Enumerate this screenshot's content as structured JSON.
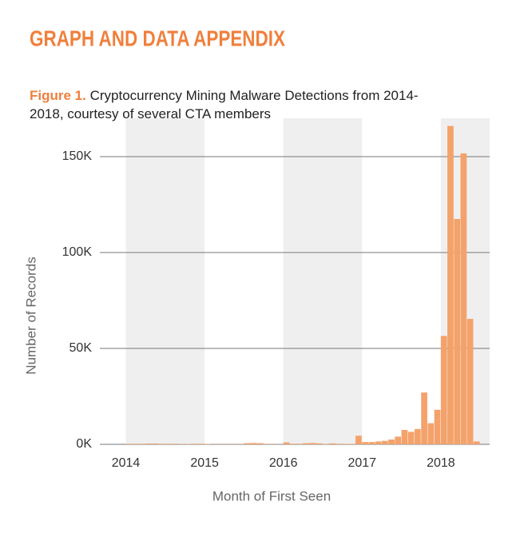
{
  "header": {
    "title": "GRAPH AND DATA APPENDIX"
  },
  "chart_data": {
    "type": "bar",
    "caption_label": "Figure 1.",
    "title": "Cryptocurrency Mining Malware Detections from 2014-2018, courtesy of several CTA members",
    "x_label": "Month of First Seen",
    "y_label": "Number of Records",
    "x": [
      2014.0,
      2014.0833,
      2014.1667,
      2014.25,
      2014.3333,
      2014.4167,
      2014.5,
      2014.5833,
      2014.6667,
      2014.75,
      2014.8333,
      2014.9167,
      2015.0,
      2015.0833,
      2015.1667,
      2015.25,
      2015.3333,
      2015.4167,
      2015.5,
      2015.5833,
      2015.6667,
      2015.75,
      2015.8333,
      2015.9167,
      2016.0,
      2016.0833,
      2016.1667,
      2016.25,
      2016.3333,
      2016.4167,
      2016.5,
      2016.5833,
      2016.6667,
      2016.75,
      2016.8333,
      2016.9167,
      2017.0,
      2017.0833,
      2017.1667,
      2017.25,
      2017.3333,
      2017.4167,
      2017.5,
      2017.5833,
      2017.6667,
      2017.75,
      2017.8333,
      2017.9167,
      2018.0,
      2018.0833,
      2018.1667,
      2018.25,
      2018.3333,
      2018.4167
    ],
    "bar_width": 0.0833,
    "values": [
      300,
      300,
      300,
      400,
      400,
      300,
      300,
      300,
      200,
      200,
      300,
      300,
      200,
      100,
      100,
      100,
      100,
      100,
      600,
      700,
      600,
      100,
      100,
      100,
      1000,
      300,
      300,
      600,
      700,
      500,
      200,
      500,
      300,
      200,
      200,
      4500,
      1200,
      1200,
      1500,
      1800,
      2500,
      4000,
      7500,
      6500,
      8000,
      27000,
      11000,
      18000,
      56500,
      166000,
      117500,
      151700,
      65400,
      1500
    ],
    "color": "#f4a26b",
    "band_color": "#efefef",
    "xlim": [
      2013.67,
      2018.62
    ],
    "xticks": [
      2014,
      2015,
      2016,
      2017,
      2018
    ],
    "ylim": [
      0,
      170000
    ],
    "yticks": [
      {
        "value": 0,
        "label": "0K"
      },
      {
        "value": 50000,
        "label": "50K"
      },
      {
        "value": 100000,
        "label": "100K"
      },
      {
        "value": 150000,
        "label": "150K"
      }
    ],
    "grid": true
  }
}
